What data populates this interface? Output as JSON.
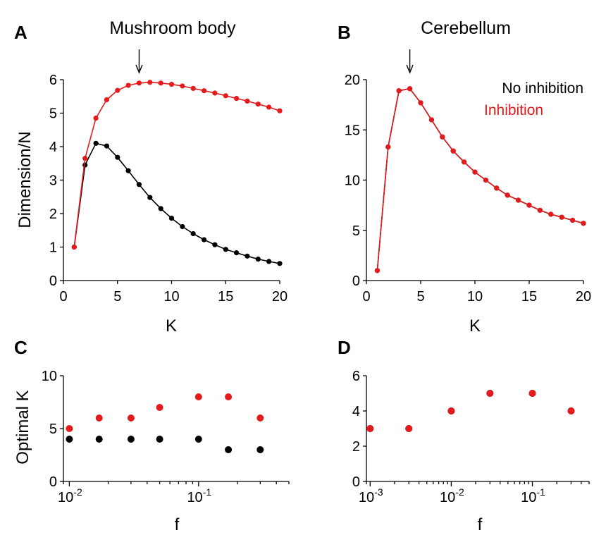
{
  "colors": {
    "no_inhibition": "#000000",
    "inhibition": "#e41a1c"
  },
  "legend": {
    "items": [
      "No inhibition",
      "Inhibition"
    ]
  },
  "chart_data": [
    {
      "panel": "A",
      "type": "line",
      "title": "Mushroom body",
      "xlabel": "K",
      "ylabel": "Dimension/N",
      "xlim": [
        0,
        20
      ],
      "ylim": [
        0,
        6
      ],
      "xticks": [
        0,
        5,
        10,
        15,
        20
      ],
      "yticks": [
        0,
        1,
        2,
        3,
        4,
        5,
        6
      ],
      "annotation_arrow_x": 7,
      "x": [
        1,
        2,
        3,
        4,
        5,
        6,
        7,
        8,
        9,
        10,
        11,
        12,
        13,
        14,
        15,
        16,
        17,
        18,
        19,
        20
      ],
      "series": [
        {
          "color": "#000000",
          "values": [
            1.0,
            3.45,
            4.1,
            4.02,
            3.68,
            3.28,
            2.87,
            2.48,
            2.15,
            1.86,
            1.61,
            1.4,
            1.22,
            1.07,
            0.93,
            0.83,
            0.73,
            0.64,
            0.57,
            0.51
          ]
        },
        {
          "color": "#e41a1c",
          "values": [
            1.0,
            3.65,
            4.85,
            5.4,
            5.68,
            5.83,
            5.9,
            5.92,
            5.9,
            5.86,
            5.81,
            5.74,
            5.67,
            5.6,
            5.52,
            5.44,
            5.36,
            5.27,
            5.18,
            5.07
          ]
        }
      ]
    },
    {
      "panel": "B",
      "type": "line",
      "title": "Cerebellum",
      "xlabel": "K",
      "ylabel": "",
      "xlim": [
        0,
        20
      ],
      "ylim": [
        0,
        20
      ],
      "xticks": [
        0,
        5,
        10,
        15,
        20
      ],
      "yticks": [
        0,
        5,
        10,
        15,
        20
      ],
      "legend_position": "top-right",
      "annotation_arrow_x": 4,
      "x": [
        1,
        2,
        3,
        4,
        5,
        6,
        7,
        8,
        9,
        10,
        11,
        12,
        13,
        14,
        15,
        16,
        17,
        18,
        19,
        20
      ],
      "series": [
        {
          "color": "#000000",
          "values": [
            1.0,
            13.3,
            18.9,
            19.1,
            17.7,
            16.0,
            14.3,
            12.9,
            11.8,
            10.8,
            10.0,
            9.2,
            8.5,
            8.0,
            7.5,
            7.0,
            6.6,
            6.3,
            6.0,
            5.7
          ]
        },
        {
          "color": "#e41a1c",
          "values": [
            1.0,
            13.3,
            18.9,
            19.1,
            17.7,
            16.0,
            14.3,
            12.9,
            11.8,
            10.8,
            10.0,
            9.2,
            8.5,
            8.0,
            7.5,
            7.0,
            6.6,
            6.3,
            6.0,
            5.7
          ]
        }
      ]
    },
    {
      "panel": "C",
      "type": "scatter",
      "xlabel": "f",
      "ylabel": "Optimal K",
      "xscale": "log",
      "xlim": [
        0.009,
        0.5
      ],
      "ylim": [
        0,
        10
      ],
      "xticks": [
        {
          "value": 0.01,
          "base": "10",
          "exp": "-2"
        },
        {
          "value": 0.1,
          "base": "10",
          "exp": "-1"
        }
      ],
      "yticks": [
        0,
        5,
        10
      ],
      "x": [
        0.01,
        0.017,
        0.03,
        0.05,
        0.1,
        0.17,
        0.3
      ],
      "series": [
        {
          "color": "#e41a1c",
          "values": [
            5,
            6,
            6,
            7,
            8,
            8,
            6
          ]
        },
        {
          "color": "#000000",
          "values": [
            4,
            4,
            4,
            4,
            4,
            3,
            3
          ]
        }
      ]
    },
    {
      "panel": "D",
      "type": "scatter",
      "xlabel": "f",
      "ylabel": "",
      "xscale": "log",
      "xlim": [
        0.0009,
        0.5
      ],
      "ylim": [
        0,
        6
      ],
      "xticks": [
        {
          "value": 0.001,
          "base": "10",
          "exp": "-3"
        },
        {
          "value": 0.01,
          "base": "10",
          "exp": "-2"
        },
        {
          "value": 0.1,
          "base": "10",
          "exp": "-1"
        }
      ],
      "yticks": [
        0,
        2,
        4,
        6
      ],
      "x": [
        0.001,
        0.003,
        0.01,
        0.03,
        0.1,
        0.3
      ],
      "series": [
        {
          "color": "#000000",
          "values": [
            3,
            3,
            4,
            5,
            5,
            4
          ]
        },
        {
          "color": "#e41a1c",
          "values": [
            3,
            3,
            4,
            5,
            5,
            4
          ]
        }
      ]
    }
  ]
}
